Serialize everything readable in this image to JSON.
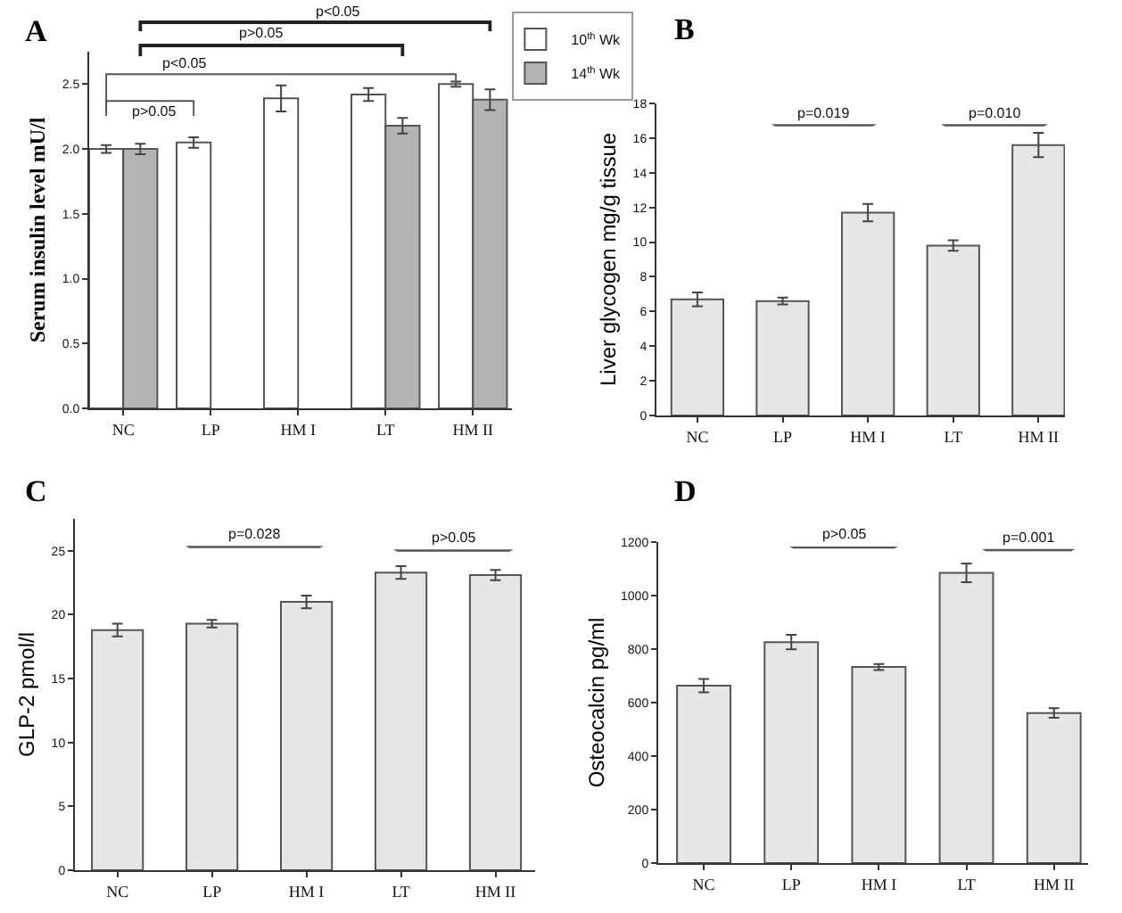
{
  "chart_data": [
    {
      "type": "bar",
      "title": "A",
      "ylabel": "Serum insulin level mU/l",
      "categories": [
        "NC",
        "LP",
        "HM I",
        "LT",
        "HM II"
      ],
      "series": [
        {
          "name": "10$^{th}$ Wk",
          "color": "#ffffff",
          "values": [
            2.0,
            2.05,
            2.39,
            2.42,
            2.5
          ],
          "errors": [
            0.03,
            0.04,
            0.1,
            0.05,
            0.02
          ]
        },
        {
          "name": "14$^{th}$ Wk",
          "color": "#b4b4b4",
          "values": [
            2.0,
            null,
            null,
            2.18,
            2.38
          ],
          "errors": [
            0.04,
            null,
            null,
            0.06,
            0.08
          ]
        }
      ],
      "ylim": [
        0,
        2.75
      ],
      "yticks": [
        {
          "value": 0,
          "label": "0.0"
        },
        0.5,
        {
          "value": 1,
          "label": "1.0"
        },
        1.5,
        {
          "value": 2,
          "label": "2.0"
        },
        2.5
      ],
      "annotations": [
        "p<0.05",
        "p>0.05",
        "p<0.05",
        "p>0.05"
      ],
      "legend": "top right"
    },
    {
      "type": "bar",
      "title": "B",
      "ylabel": "Liver glycogen mg/g tissue",
      "categories": [
        "NC",
        "LP",
        "HM I",
        "LT",
        "HM II"
      ],
      "values": [
        6.7,
        6.6,
        11.7,
        9.8,
        15.6
      ],
      "errors": [
        0.4,
        0.2,
        0.5,
        0.3,
        0.7
      ],
      "color": "#e6e6e6",
      "ylim": [
        0,
        18
      ],
      "yticks": [
        0,
        2,
        4,
        6,
        8,
        10,
        12,
        14,
        16,
        18
      ],
      "annotations": [
        "p=0.019",
        "p=0.010"
      ]
    },
    {
      "type": "bar",
      "title": "C",
      "ylabel": "GLP-2 pmol/l",
      "categories": [
        "NC",
        "LP",
        "HM I",
        "LT",
        "HM II"
      ],
      "values": [
        18.8,
        19.3,
        21.0,
        23.3,
        23.1
      ],
      "errors": [
        0.5,
        0.3,
        0.5,
        0.5,
        0.4
      ],
      "color": "#e6e6e6",
      "ylim": [
        0,
        27.5
      ],
      "yticks": [
        0,
        5,
        10,
        15,
        20,
        25
      ],
      "annotations": [
        "p=0.028",
        "p>0.05"
      ]
    },
    {
      "type": "bar",
      "title": "D",
      "ylabel": "Osteocalcin pg/ml",
      "categories": [
        "NC",
        "LP",
        "HM I",
        "LT",
        "HM II"
      ],
      "values": [
        663,
        826,
        733,
        1085,
        561
      ],
      "errors": [
        25,
        27,
        11,
        35,
        18
      ],
      "color": "#e6e6e6",
      "ylim": [
        0,
        1200
      ],
      "yticks": [
        0,
        200,
        400,
        600,
        800,
        1000,
        1200
      ],
      "annotations": [
        "p>0.05",
        "p=0.001"
      ]
    }
  ]
}
